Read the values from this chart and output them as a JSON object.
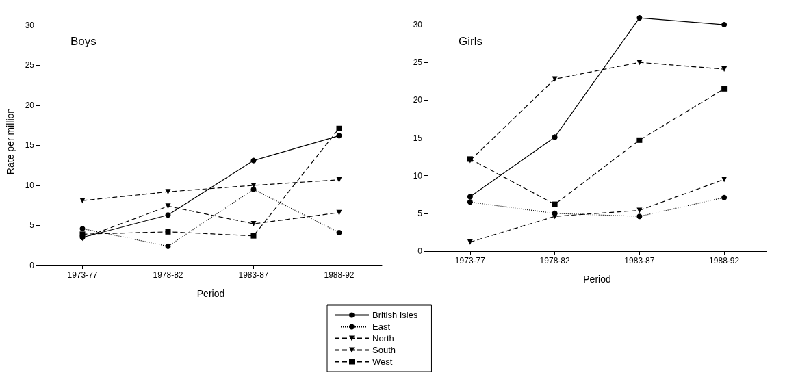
{
  "chart_data": [
    {
      "type": "line",
      "title": "Boys",
      "xlabel": "Period",
      "ylabel": "Rate per million",
      "categories": [
        "1973-77",
        "1978-82",
        "1983-87",
        "1988-92"
      ],
      "ylim": [
        0,
        31
      ],
      "yticks": [
        0,
        5,
        10,
        15,
        20,
        25,
        30
      ],
      "grid": false,
      "legend": "bottom",
      "series": [
        {
          "name": "British Isles",
          "color": "#000000",
          "marker": "circle",
          "line_style": "solid",
          "values": [
            3.5,
            6.3,
            13.1,
            16.2
          ]
        },
        {
          "name": "East",
          "color": "#000000",
          "marker": "circle",
          "line_style": "dotted",
          "values": [
            4.6,
            2.4,
            9.5,
            4.1
          ]
        },
        {
          "name": "North",
          "color": "#000000",
          "marker": "triangle",
          "line_style": "dashed",
          "values": [
            8.1,
            9.2,
            10.0,
            10.7
          ]
        },
        {
          "name": "South",
          "color": "#000000",
          "marker": "triangle",
          "line_style": "dashed",
          "values": [
            3.4,
            7.4,
            5.2,
            6.6
          ]
        },
        {
          "name": "West",
          "color": "#000000",
          "marker": "square",
          "line_style": "dashed",
          "values": [
            3.9,
            4.2,
            3.7,
            17.1
          ]
        }
      ]
    },
    {
      "type": "line",
      "title": "Girls",
      "xlabel": "Period",
      "categories": [
        "1973-77",
        "1978-82",
        "1983-87",
        "1988-92"
      ],
      "ylim": [
        0,
        31
      ],
      "yticks": [
        0,
        5,
        10,
        15,
        20,
        25,
        30
      ],
      "grid": false,
      "legend": false,
      "series": [
        {
          "color": "#000000",
          "marker": "circle",
          "line_style": "solid",
          "values": [
            7.2,
            15.1,
            30.9,
            30.0
          ]
        },
        {
          "color": "#000000",
          "marker": "circle",
          "line_style": "dotted",
          "values": [
            6.5,
            5.0,
            4.6,
            7.1
          ]
        },
        {
          "color": "#000000",
          "marker": "triangle",
          "line_style": "dashed",
          "values": [
            12.0,
            22.8,
            25.0,
            24.1
          ]
        },
        {
          "color": "#000000",
          "marker": "triangle",
          "line_style": "dashed",
          "values": [
            1.2,
            4.6,
            5.4,
            9.5
          ]
        },
        {
          "color": "#000000",
          "marker": "square",
          "line_style": "dashed",
          "values": [
            12.2,
            6.2,
            14.7,
            21.5
          ]
        }
      ]
    }
  ]
}
